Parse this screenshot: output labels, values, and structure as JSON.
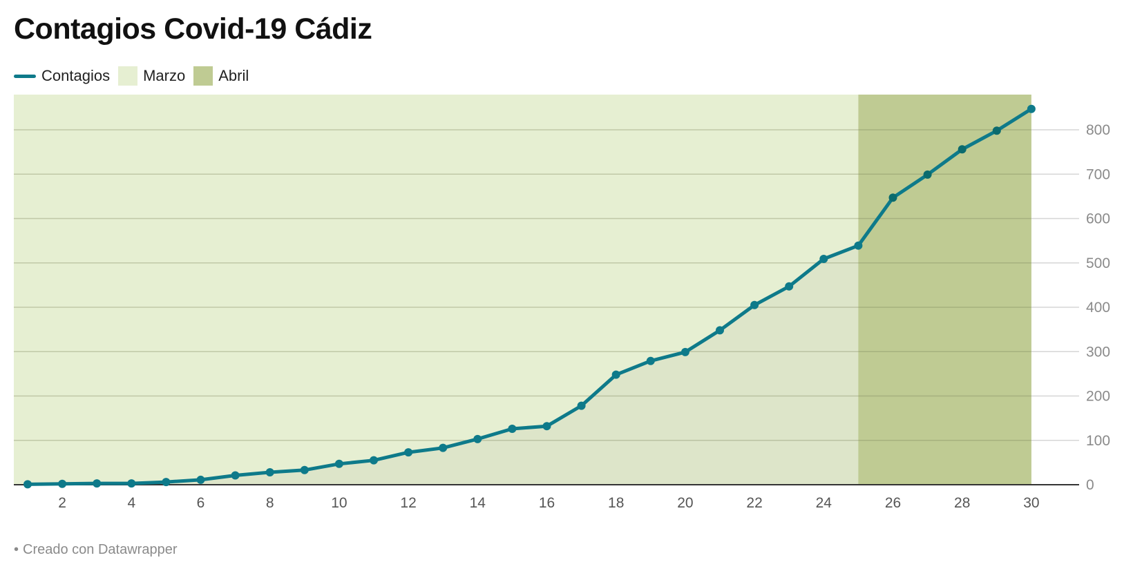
{
  "title": "Contagios Covid-19 Cádiz",
  "legend": [
    {
      "label": "Contagios",
      "type": "line",
      "color": "#0e7a8a"
    },
    {
      "label": "Marzo",
      "type": "swatch",
      "color": "#e6efd2"
    },
    {
      "label": "Abril",
      "type": "swatch",
      "color": "#bfcb93"
    }
  ],
  "footer": {
    "bullet": "•",
    "text": "Creado con Datawrapper"
  },
  "colors": {
    "line": "#0e7a8a",
    "line_on_dark": "#0b6b6e",
    "marzo_band": "#e6efd2",
    "abril_band": "#bfcb93",
    "area_fill": "#dde5c9",
    "grid": "#c9cfb6",
    "axis_text": "#8a8a8a",
    "baseline": "#333333"
  },
  "chart_data": {
    "type": "line",
    "title": "Contagios Covid-19 Cádiz",
    "xlabel": "",
    "ylabel": "",
    "x": [
      1,
      2,
      3,
      4,
      5,
      6,
      7,
      8,
      9,
      10,
      11,
      12,
      13,
      14,
      15,
      16,
      17,
      18,
      19,
      20,
      21,
      22,
      23,
      24,
      25,
      26,
      27,
      28,
      29,
      30
    ],
    "series": [
      {
        "name": "Contagios",
        "values": [
          1,
          2,
          3,
          3,
          6,
          11,
          21,
          28,
          33,
          47,
          55,
          73,
          83,
          103,
          126,
          132,
          178,
          248,
          279,
          299,
          348,
          405,
          447,
          509,
          539,
          647,
          699,
          756,
          798,
          847
        ]
      }
    ],
    "x_ticks": [
      "2",
      "4",
      "6",
      "8",
      "10",
      "12",
      "14",
      "16",
      "18",
      "20",
      "22",
      "24",
      "26",
      "28",
      "30"
    ],
    "y_ticks": [
      "0",
      "100",
      "200",
      "300",
      "400",
      "500",
      "600",
      "700",
      "800"
    ],
    "ylim": [
      0,
      880
    ],
    "xlim": [
      1,
      30
    ],
    "y_axis_position": "right",
    "grid": true,
    "legend_position": "top-left",
    "annotations": [
      {
        "type": "range",
        "label": "Marzo",
        "x_from": 0.6,
        "x_to": 25
      },
      {
        "type": "range",
        "label": "Abril",
        "x_from": 25,
        "x_to": 30
      }
    ],
    "area_under_line": true,
    "markers": true
  }
}
